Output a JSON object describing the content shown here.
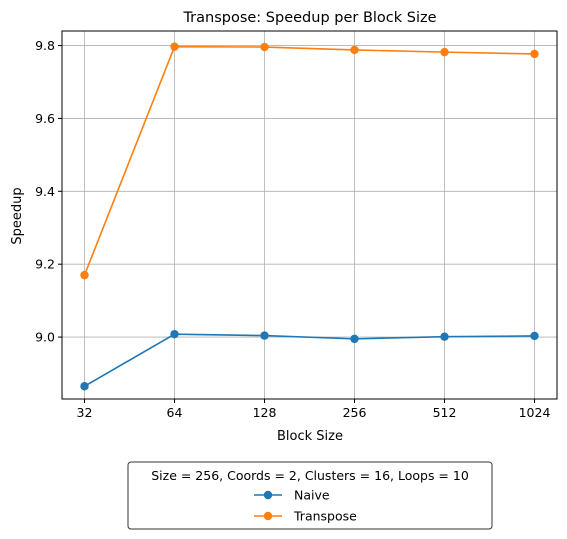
{
  "chart_data": {
    "type": "line",
    "title": "Transpose: Speedup per Block Size",
    "xlabel": "Block Size",
    "ylabel": "Speedup",
    "x_scale": "log2",
    "categories": [
      "32",
      "64",
      "128",
      "256",
      "512",
      "1024"
    ],
    "x": [
      32,
      64,
      128,
      256,
      512,
      1024
    ],
    "ylim": [
      8.83,
      9.84
    ],
    "yticks": [
      9.0,
      9.2,
      9.4,
      9.6,
      9.8
    ],
    "ytick_labels": [
      "9.0",
      "9.2",
      "9.4",
      "9.6",
      "9.8"
    ],
    "grid": true,
    "legend_position": "below",
    "legend_title": "Size = 256, Coords = 2, Clusters = 16, Loops = 10",
    "series": [
      {
        "name": "Naive",
        "color": "#1f77b4",
        "marker": "circle",
        "values": [
          8.865,
          9.008,
          9.004,
          8.995,
          9.001,
          9.003
        ]
      },
      {
        "name": "Transpose",
        "color": "#ff7f0e",
        "marker": "circle",
        "values": [
          9.17,
          9.797,
          9.796,
          9.788,
          9.782,
          9.777
        ]
      }
    ]
  }
}
